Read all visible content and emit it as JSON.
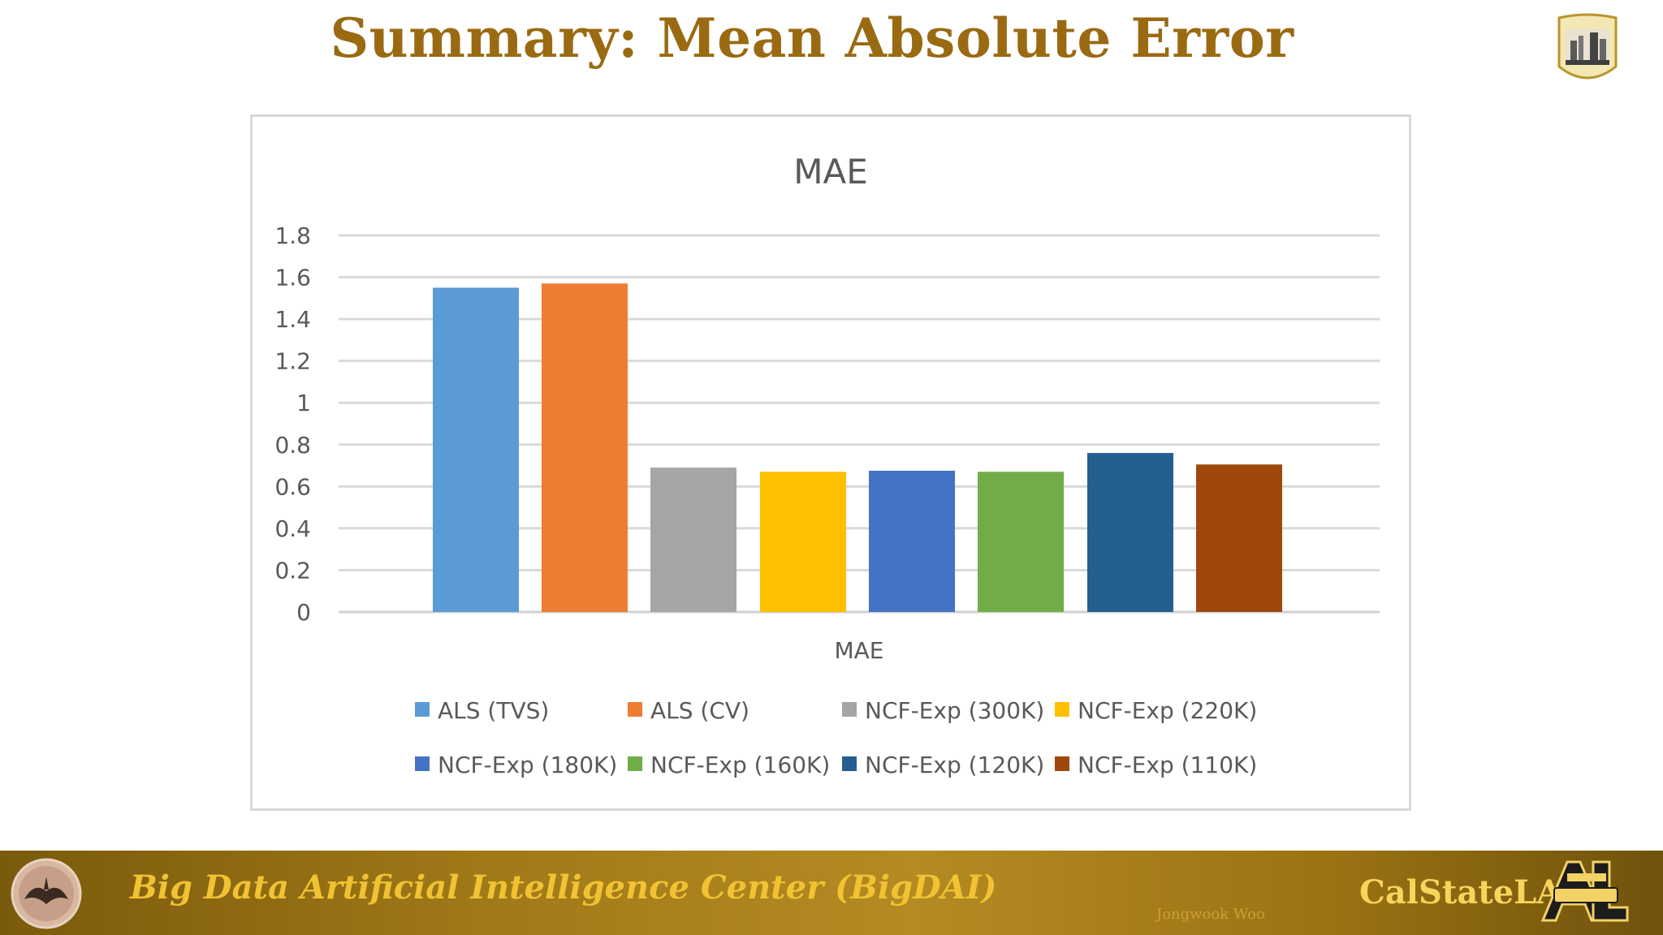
{
  "slide": {
    "title": "Summary: Mean Absolute Error"
  },
  "footer": {
    "center_name": "Big Data Artificial Intelligence Center (BigDAI)",
    "author": "Jongwook Woo",
    "brand": "CalStateLA"
  },
  "colors": {
    "title": "#9a6a12",
    "footer_text": "#f1c232"
  },
  "chart_data": {
    "type": "bar",
    "title": "MAE",
    "xlabel": "MAE",
    "ylabel": "",
    "ylim": [
      0,
      1.8
    ],
    "yticks": [
      "0",
      "0.2",
      "0.4",
      "0.6",
      "0.8",
      "1",
      "1.2",
      "1.4",
      "1.6",
      "1.8"
    ],
    "grid": true,
    "legend_position": "bottom",
    "categories": [
      "MAE"
    ],
    "series": [
      {
        "name": "ALS (TVS)",
        "values": [
          1.55
        ],
        "color": "#5b9bd5"
      },
      {
        "name": "ALS (CV)",
        "values": [
          1.57
        ],
        "color": "#ed7d31"
      },
      {
        "name": "NCF-Exp (300K)",
        "values": [
          0.69
        ],
        "color": "#a5a5a5"
      },
      {
        "name": "NCF-Exp (220K)",
        "values": [
          0.67
        ],
        "color": "#ffc000"
      },
      {
        "name": "NCF-Exp (180K)",
        "values": [
          0.675
        ],
        "color": "#4472c4"
      },
      {
        "name": "NCF-Exp (160K)",
        "values": [
          0.67
        ],
        "color": "#70ad47"
      },
      {
        "name": "NCF-Exp (120K)",
        "values": [
          0.76
        ],
        "color": "#255e91"
      },
      {
        "name": "NCF-Exp (110K)",
        "values": [
          0.705
        ],
        "color": "#9e480e"
      }
    ]
  }
}
